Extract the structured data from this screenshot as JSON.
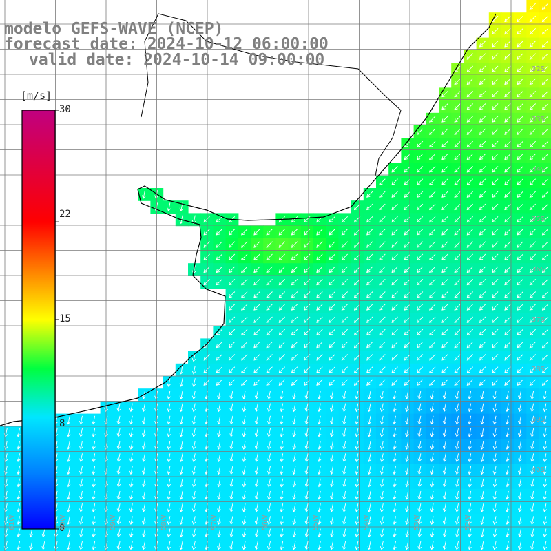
{
  "title": {
    "line1": "modelo GEFS-WAVE (NCEP)",
    "line2": "forecast date: 2024-10-12 06:00:00",
    "line3": "valid date: 2024-10-14 09:00:00"
  },
  "legend": {
    "unit": "[m/s]",
    "ticks": [
      "30",
      "22",
      "15",
      "8",
      "0"
    ],
    "tick_values": [
      30,
      22,
      15,
      8,
      0
    ],
    "range": [
      0,
      30
    ],
    "colors": [
      "#0000ff",
      "#0080ff",
      "#00e6ff",
      "#00ff40",
      "#ffff00",
      "#ff8000",
      "#ff0000",
      "#c00080"
    ]
  },
  "axes": {
    "lat_labels": [
      "32S",
      "33S",
      "34S",
      "35S",
      "36S",
      "37S",
      "38S",
      "39S",
      "40S"
    ],
    "lon_labels": [
      "61W",
      "60W",
      "59W",
      "58W",
      "57W",
      "56W",
      "55W",
      "54W",
      "53W",
      "52W"
    ]
  },
  "map": {
    "variable": "wind speed",
    "arrow_direction": "southwest to south",
    "land_color": "#ffffff",
    "grid_color": "#808080",
    "coast_color": "#000000"
  }
}
